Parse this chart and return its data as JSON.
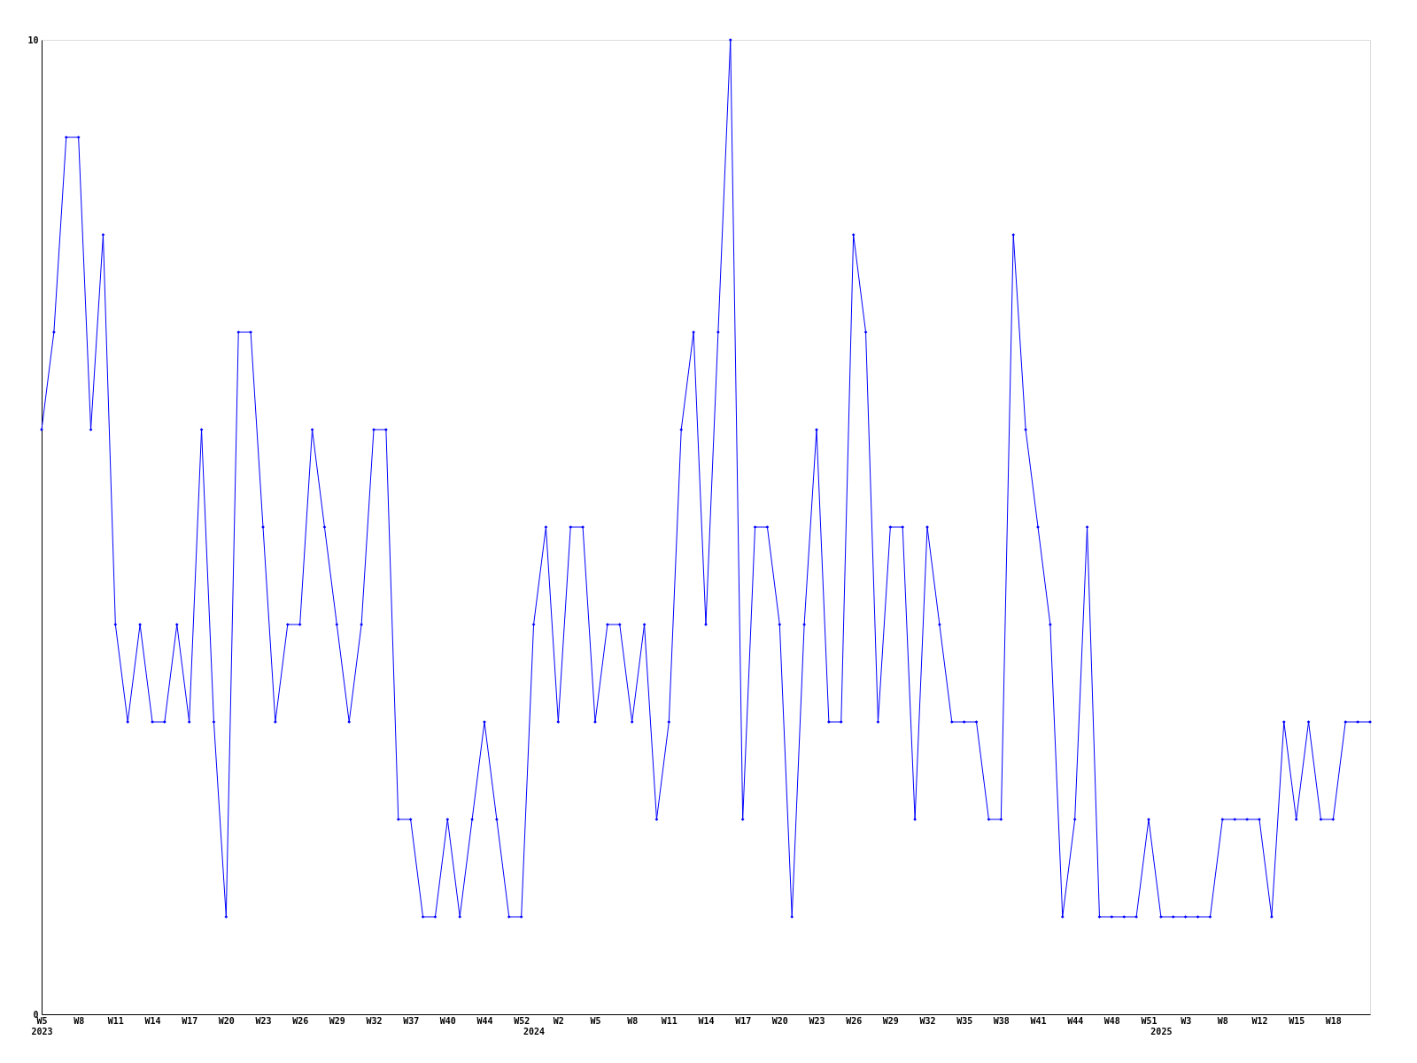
{
  "chart_data": {
    "type": "line",
    "categories": [
      "W5\n2023",
      null,
      null,
      "W8",
      null,
      null,
      "W11",
      null,
      null,
      "W14",
      null,
      null,
      "W17",
      null,
      null,
      "W20",
      null,
      null,
      "W23",
      null,
      null,
      "W26",
      null,
      null,
      "W29",
      null,
      null,
      "W32",
      null,
      null,
      "W37",
      null,
      null,
      "W40",
      null,
      null,
      "W44",
      null,
      null,
      "W52",
      "\n2024",
      null,
      "W2",
      null,
      null,
      "W5",
      null,
      null,
      "W8",
      null,
      null,
      "W11",
      null,
      null,
      "W14",
      null,
      null,
      "W17",
      null,
      null,
      "W20",
      null,
      null,
      "W23",
      null,
      null,
      "W26",
      null,
      null,
      "W29",
      null,
      null,
      "W32",
      null,
      null,
      "W35",
      null,
      null,
      "W38",
      null,
      null,
      "W41",
      null,
      null,
      "W44",
      null,
      null,
      "W48",
      null,
      null,
      "W51",
      "\n2025",
      null,
      "W3",
      null,
      null,
      "W8",
      null,
      null,
      "W12",
      null,
      null,
      "W15",
      null,
      null,
      "W18",
      null,
      null,
      null
    ],
    "series": [
      {
        "color": "#0000ff",
        "values": [
          6,
          7,
          9,
          9,
          6,
          8,
          4,
          3,
          4,
          3,
          3,
          4,
          3,
          6,
          3,
          1,
          7,
          7,
          5,
          3,
          4,
          4,
          6,
          5,
          4,
          3,
          4,
          6,
          6,
          2,
          2,
          1,
          1,
          2,
          1,
          2,
          3,
          2,
          1,
          1,
          4,
          5,
          3,
          5,
          5,
          3,
          4,
          4,
          3,
          4,
          2,
          3,
          6,
          7,
          4,
          7,
          10,
          2,
          5,
          5,
          4,
          1,
          4,
          6,
          3,
          3,
          8,
          7,
          3,
          5,
          5,
          2,
          5,
          4,
          3,
          3,
          3,
          2,
          2,
          8,
          6,
          5,
          4,
          1,
          2,
          5,
          1,
          1,
          1,
          1,
          2,
          1,
          1,
          1,
          1,
          1,
          2,
          2,
          2,
          2,
          1,
          3,
          2,
          3,
          2,
          2,
          3,
          3,
          3
        ]
      }
    ],
    "ylim": [
      0,
      10
    ],
    "yticks": [
      0,
      10
    ],
    "marker": "diamond",
    "line_style": "solid"
  }
}
